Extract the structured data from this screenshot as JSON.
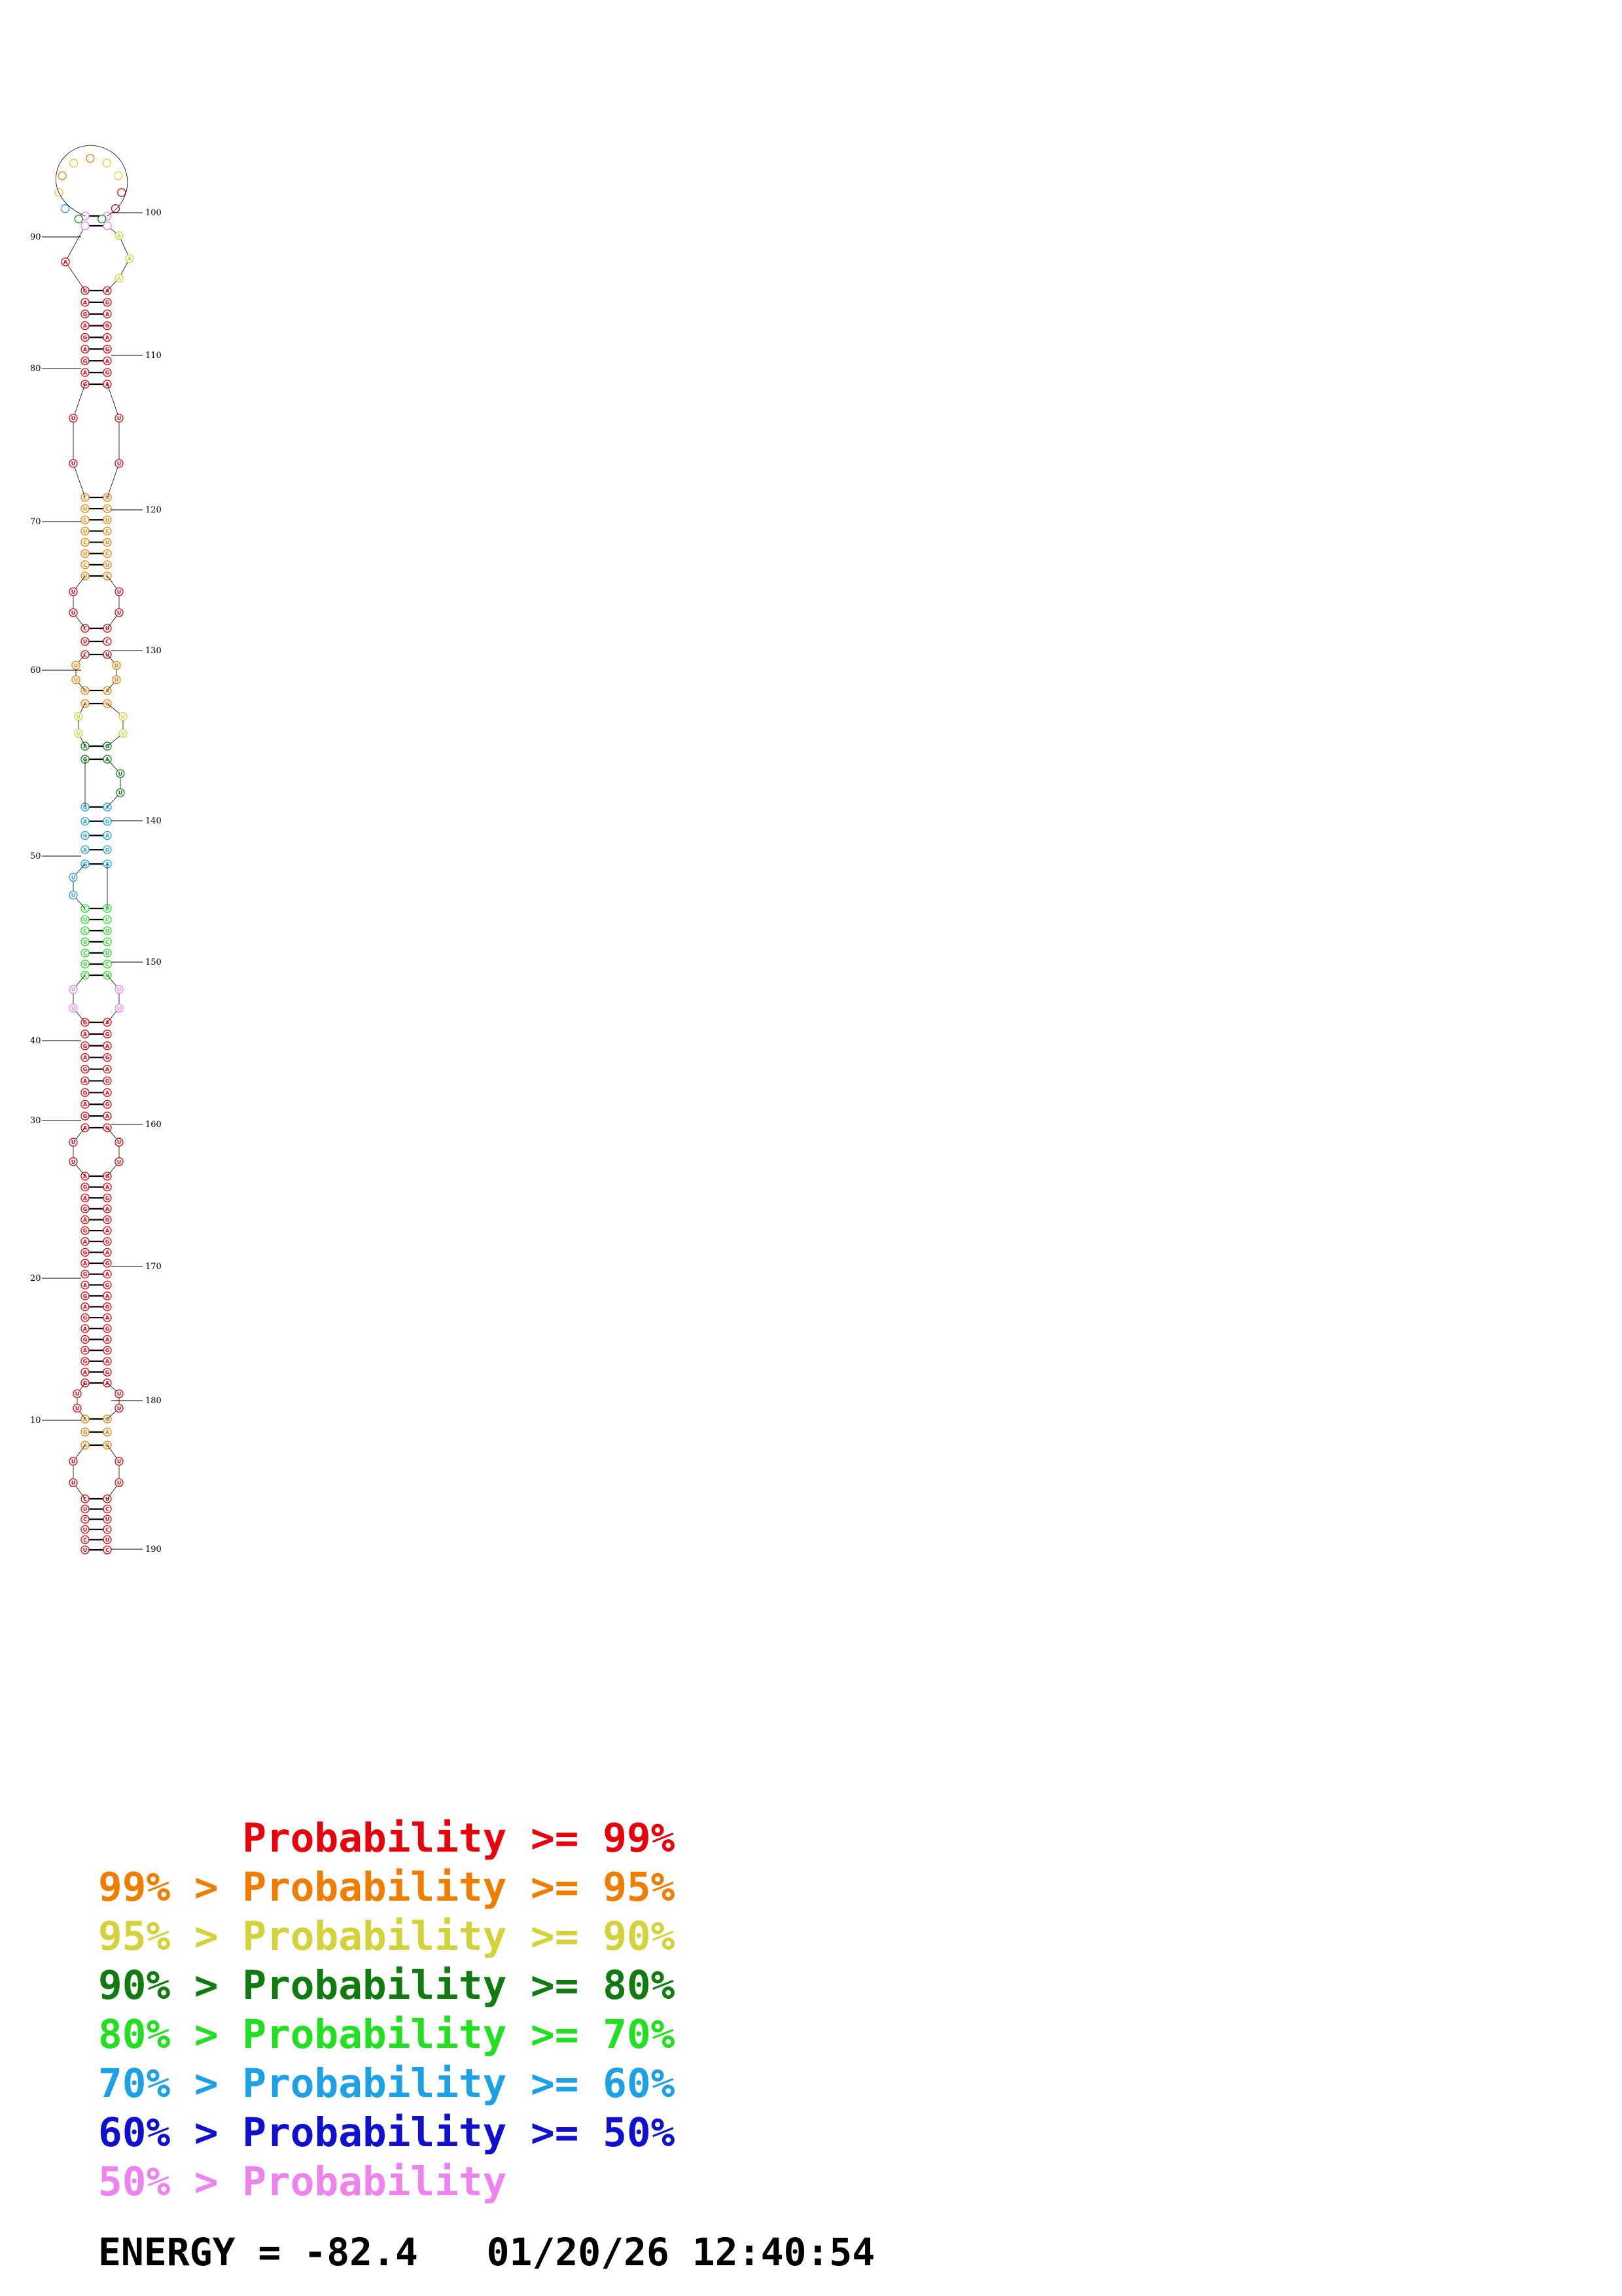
{
  "diagram": {
    "sequence_length": 190,
    "position_labels": [
      "10",
      "20",
      "30",
      "40",
      "50",
      "60",
      "70",
      "80",
      "90",
      "100",
      "110",
      "120",
      "130",
      "140",
      "150",
      "160",
      "170",
      "180",
      "190"
    ],
    "probability_colors": {
      "p99": "#e8000b",
      "p95": "#f07c00",
      "p90": "#d4d23a",
      "p80": "#107c10",
      "p70": "#20e020",
      "p60": "#1ca0e6",
      "p50": "#1010d0",
      "plt50": "#ee82ee"
    },
    "pair_line_color": "#000000"
  },
  "legend": [
    {
      "text": "      Probability >= 99%",
      "color": "#e8000b"
    },
    {
      "text": "99% > Probability >= 95%",
      "color": "#f07c00"
    },
    {
      "text": "95% > Probability >= 90%",
      "color": "#d4d23a"
    },
    {
      "text": "90% > Probability >= 80%",
      "color": "#107c10"
    },
    {
      "text": "80% > Probability >= 70%",
      "color": "#20e020"
    },
    {
      "text": "70% > Probability >= 60%",
      "color": "#1ca0e6"
    },
    {
      "text": "60% > Probability >= 50%",
      "color": "#1010d0"
    },
    {
      "text": "50% > Probability",
      "color": "#ee82ee"
    }
  ],
  "energy": {
    "text": "ENERGY = -82.4   01/20/26 12:40:54"
  }
}
